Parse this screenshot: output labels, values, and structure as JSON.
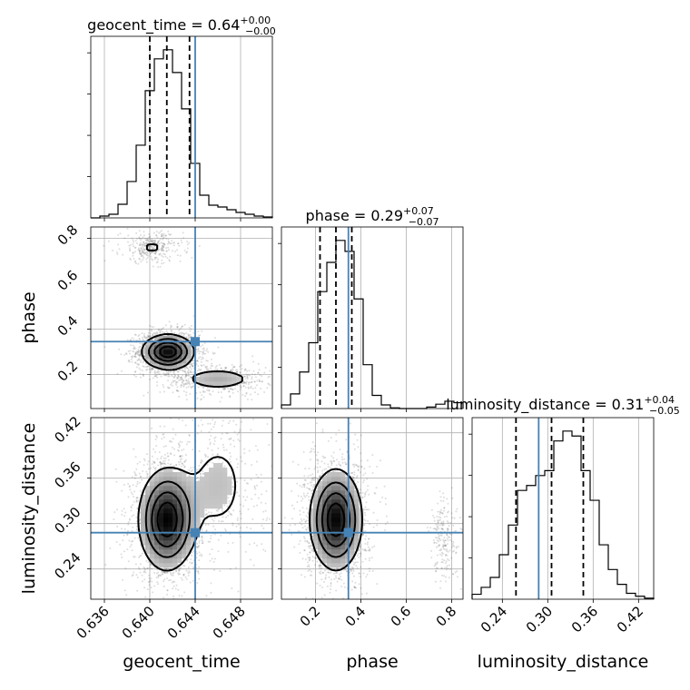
{
  "parameters": [
    "geocent_time",
    "phase",
    "luminosity_distance"
  ],
  "truth_color": "#4682b4",
  "chart_data": {
    "type": "corner",
    "grid": true,
    "titles": [
      {
        "param": "geocent_time",
        "label": "geocent_time = 0.64",
        "plus": "+0.00",
        "minus": "−0.00"
      },
      {
        "param": "phase",
        "label": "phase = 0.29",
        "plus": "+0.07",
        "minus": "−0.07"
      },
      {
        "param": "luminosity_distance",
        "label": "luminosity_distance = 0.31",
        "plus": "+0.04",
        "minus": "−0.05"
      }
    ],
    "axes": {
      "geocent_time": {
        "range": [
          0.6348,
          0.6508
        ],
        "ticks": [
          0.636,
          0.64,
          0.644,
          0.648
        ],
        "tick_labels": [
          "0.636",
          "0.640",
          "0.644",
          "0.648"
        ],
        "label": "geocent_time"
      },
      "phase": {
        "range": [
          0.05,
          0.85
        ],
        "ticks": [
          0.2,
          0.4,
          0.6,
          0.8
        ],
        "tick_labels": [
          "0.2",
          "0.4",
          "0.6",
          "0.8"
        ],
        "label": "phase"
      },
      "luminosity_distance": {
        "range": [
          0.2,
          0.44
        ],
        "ticks": [
          0.24,
          0.3,
          0.36,
          0.42
        ],
        "tick_labels": [
          "0.24",
          "0.30",
          "0.36",
          "0.42"
        ],
        "label": "luminosity_distance"
      }
    },
    "truths": {
      "geocent_time": 0.644,
      "phase": 0.345,
      "luminosity_distance": 0.288
    },
    "quantiles": {
      "geocent_time": [
        0.64,
        0.6415,
        0.6435
      ],
      "phase": [
        0.22,
        0.29,
        0.36
      ],
      "luminosity_distance": [
        0.258,
        0.305,
        0.347
      ]
    },
    "histograms": {
      "geocent_time": {
        "edges": [
          0.6348,
          0.6356,
          0.6364,
          0.6372,
          0.638,
          0.6388,
          0.6396,
          0.6404,
          0.6412,
          0.642,
          0.6428,
          0.6436,
          0.6444,
          0.6452,
          0.646,
          0.6468,
          0.6476,
          0.6484,
          0.6492,
          0.65,
          0.6508
        ],
        "counts": [
          0,
          2,
          4,
          15,
          40,
          80,
          140,
          175,
          185,
          160,
          120,
          60,
          25,
          14,
          12,
          9,
          6,
          4,
          2,
          1
        ]
      },
      "phase": {
        "edges": [
          0.05,
          0.09,
          0.13,
          0.17,
          0.21,
          0.25,
          0.29,
          0.33,
          0.37,
          0.41,
          0.45,
          0.49,
          0.53,
          0.57,
          0.61,
          0.65,
          0.69,
          0.73,
          0.77,
          0.81,
          0.85
        ],
        "counts": [
          5,
          20,
          50,
          90,
          160,
          200,
          230,
          215,
          150,
          60,
          18,
          5,
          1,
          0,
          0,
          0,
          2,
          6,
          10,
          8
        ]
      },
      "luminosity_distance": {
        "edges": [
          0.2,
          0.212,
          0.224,
          0.236,
          0.248,
          0.26,
          0.272,
          0.284,
          0.296,
          0.308,
          0.32,
          0.332,
          0.344,
          0.356,
          0.368,
          0.38,
          0.392,
          0.404,
          0.416,
          0.428,
          0.44
        ],
        "counts": [
          5,
          12,
          22,
          45,
          75,
          110,
          115,
          125,
          130,
          160,
          170,
          165,
          130,
          100,
          55,
          30,
          15,
          6,
          3,
          1
        ]
      }
    },
    "clusters": {
      "geocent_time|phase": [
        {
          "cx": 0.6416,
          "cy": 0.3,
          "sx": 0.0012,
          "sy": 0.04,
          "n": 600
        },
        {
          "cx": 0.646,
          "cy": 0.18,
          "sx": 0.002,
          "sy": 0.03,
          "n": 180
        },
        {
          "cx": 0.6402,
          "cy": 0.76,
          "sx": 0.0012,
          "sy": 0.03,
          "n": 110
        }
      ],
      "geocent_time|luminosity_distance": [
        {
          "cx": 0.6415,
          "cy": 0.305,
          "sx": 0.0013,
          "sy": 0.035,
          "n": 700
        },
        {
          "cx": 0.646,
          "cy": 0.35,
          "sx": 0.002,
          "sy": 0.05,
          "n": 150
        }
      ],
      "phase|luminosity_distance": [
        {
          "cx": 0.29,
          "cy": 0.305,
          "sx": 0.06,
          "sy": 0.035,
          "n": 700
        },
        {
          "cx": 0.77,
          "cy": 0.28,
          "sx": 0.03,
          "sy": 0.025,
          "n": 70
        }
      ]
    },
    "contour_levels": [
      0.55,
      1.1,
      1.7,
      2.3
    ]
  }
}
